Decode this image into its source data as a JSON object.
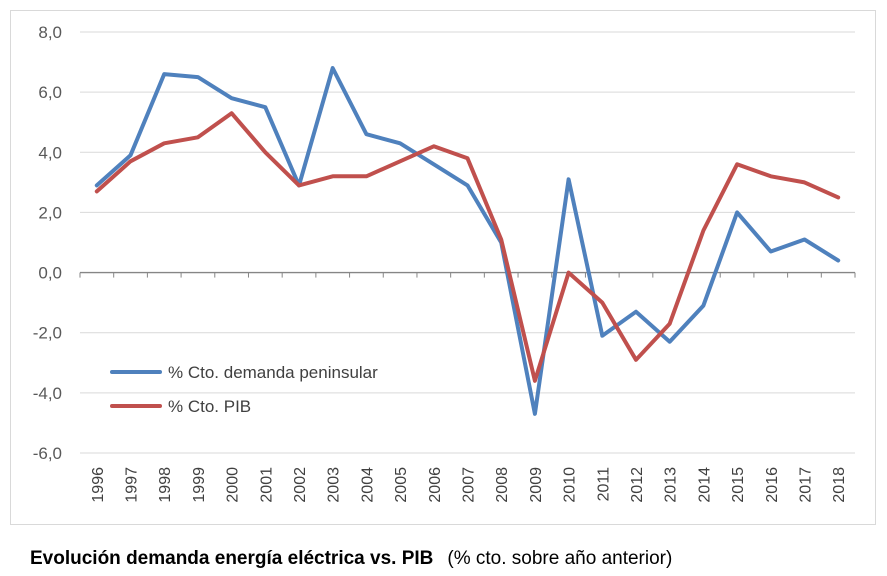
{
  "chart_data": {
    "type": "line",
    "x": [
      "1996",
      "1997",
      "1998",
      "1999",
      "2000",
      "2001",
      "2002",
      "2003",
      "2004",
      "2005",
      "2006",
      "2007",
      "2008",
      "2009",
      "2010",
      "2011",
      "2012",
      "2013",
      "2014",
      "2015",
      "2016",
      "2017",
      "2018"
    ],
    "series": [
      {
        "name": "% Cto. demanda peninsular",
        "color": "#4f81bd",
        "values": [
          2.9,
          3.9,
          6.6,
          6.5,
          5.8,
          5.5,
          2.9,
          6.8,
          4.6,
          4.3,
          3.6,
          2.9,
          1.0,
          -4.7,
          3.1,
          -2.1,
          -1.3,
          -2.3,
          -1.1,
          2.0,
          0.7,
          1.1,
          0.4
        ]
      },
      {
        "name": "% Cto. PIB",
        "color": "#c0504d",
        "values": [
          2.7,
          3.7,
          4.3,
          4.5,
          5.3,
          4.0,
          2.9,
          3.2,
          3.2,
          3.7,
          4.2,
          3.8,
          1.1,
          -3.6,
          0.0,
          -1.0,
          -2.9,
          -1.7,
          1.4,
          3.6,
          3.2,
          3.0,
          2.5
        ]
      }
    ],
    "y_ticks": [
      "8,0",
      "6,0",
      "4,0",
      "2,0",
      "0,0",
      "-2,0",
      "-4,0",
      "-6,0"
    ],
    "ylim": [
      -6,
      8
    ],
    "grid": true,
    "legend_position": "lower-left",
    "title": "",
    "xlabel": "",
    "ylabel": ""
  },
  "caption": {
    "title": "Evolución demanda energía eléctrica vs. PIB",
    "note": "(% cto. sobre año anterior)"
  }
}
